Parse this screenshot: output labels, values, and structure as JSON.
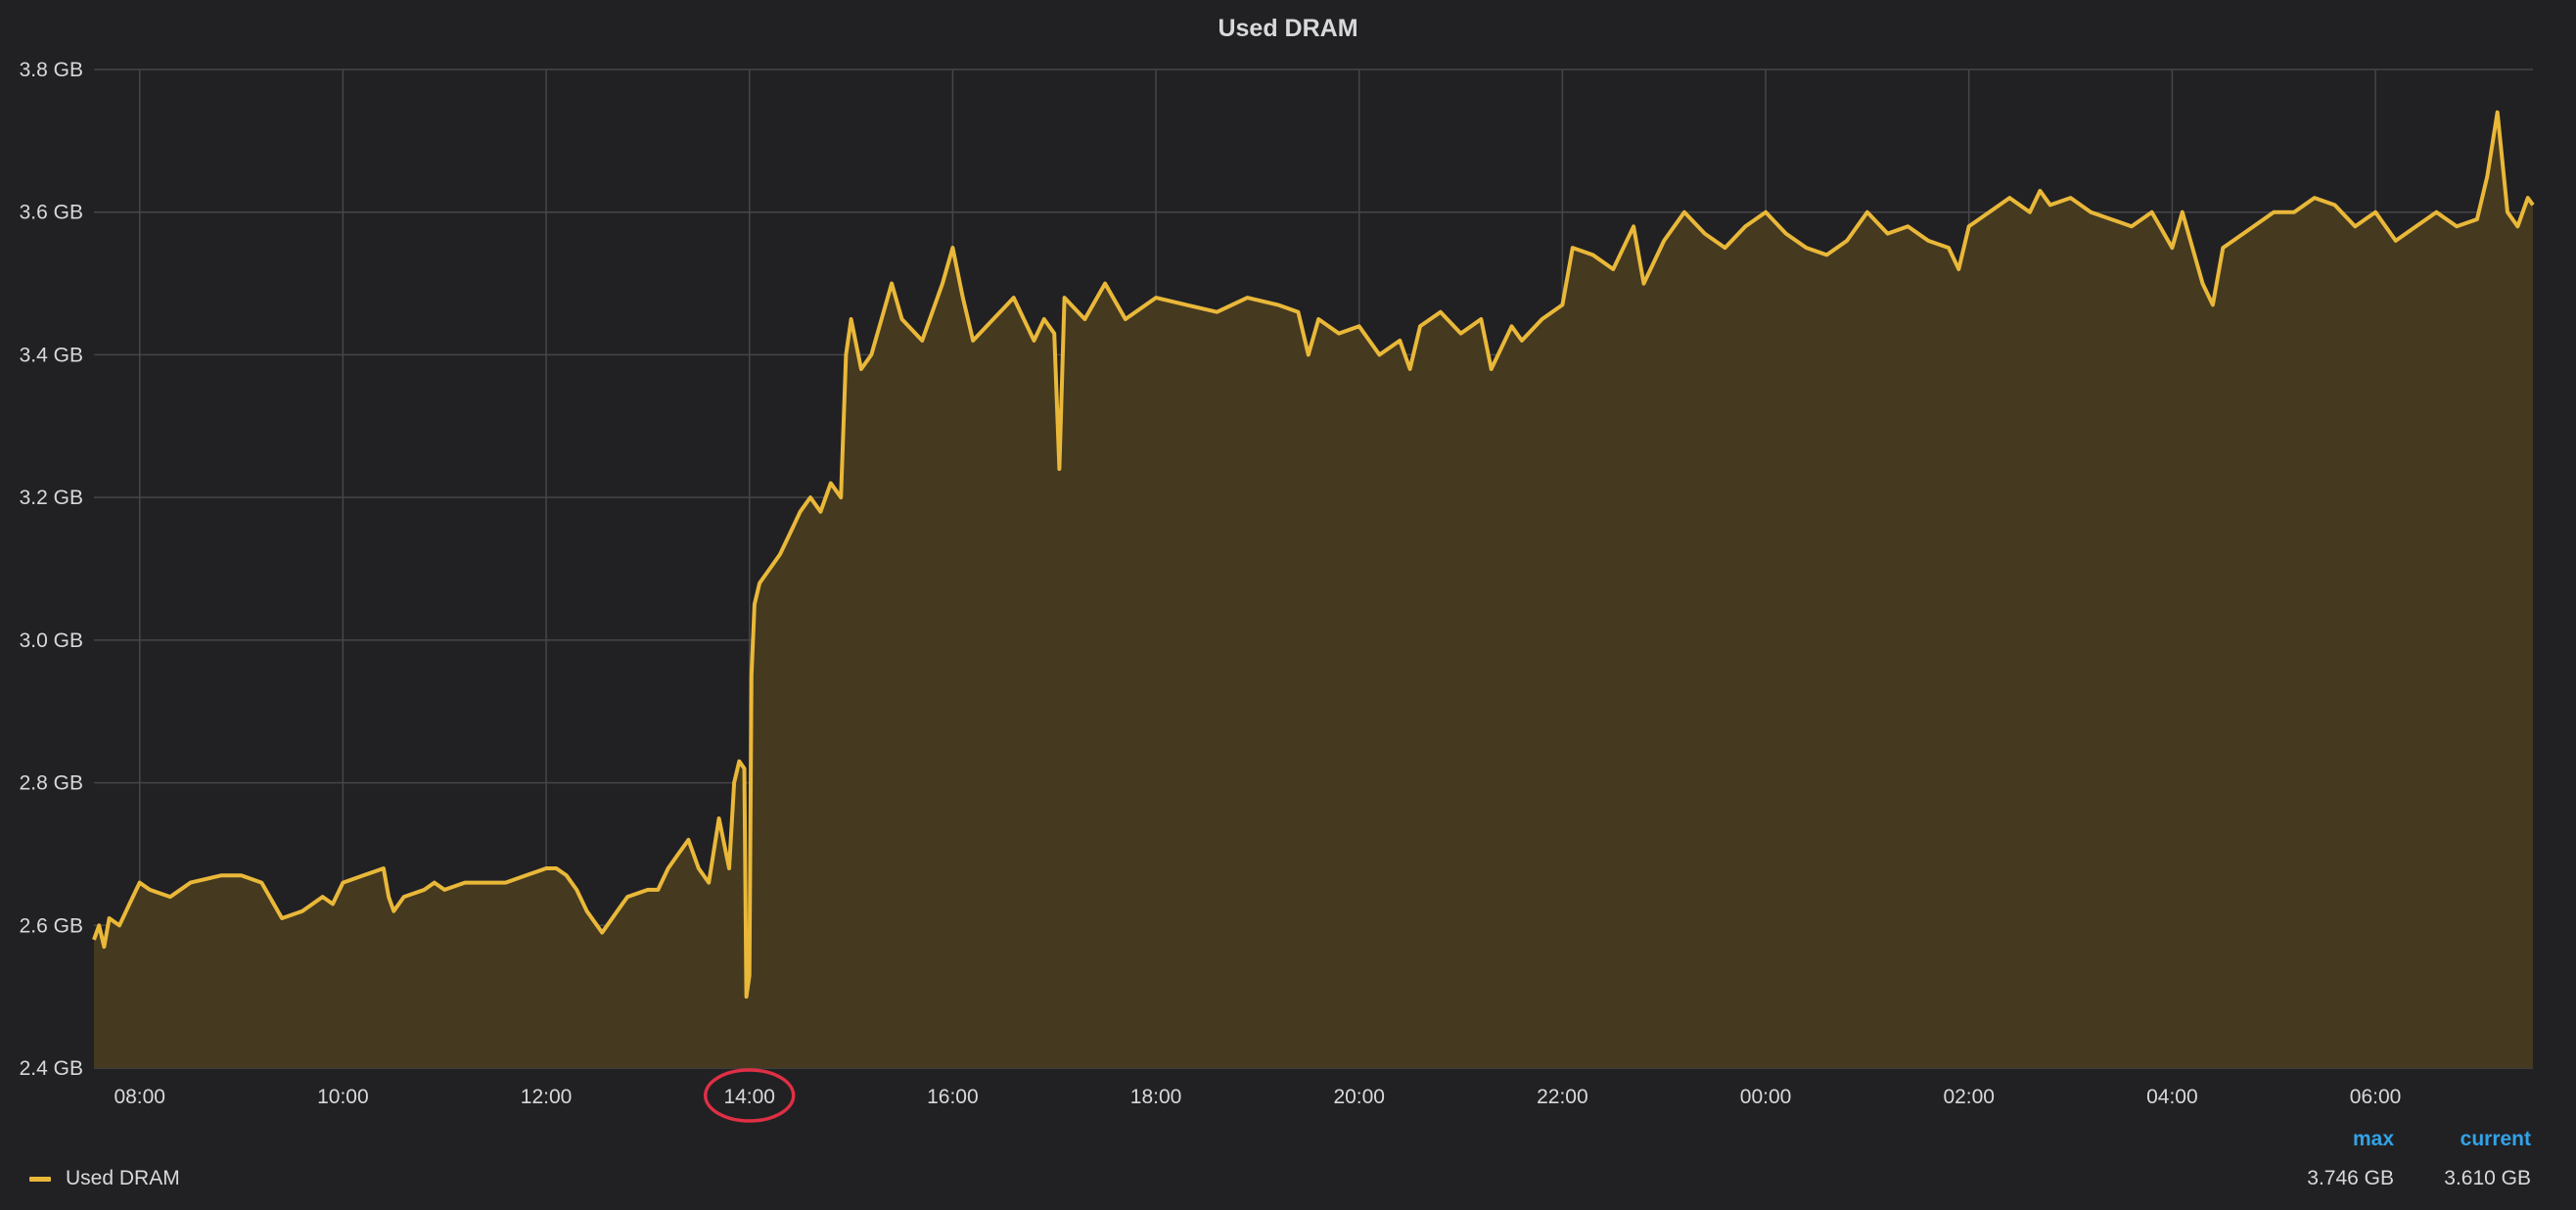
{
  "colors": {
    "background": "#212124",
    "grid": "#464649",
    "series_line": "#eab839",
    "series_fill": "#453a20",
    "legend_header": "#33a2e5",
    "text": "#d8d9da",
    "annotation_circle": "#e02f44"
  },
  "legend": {
    "header_max": "max",
    "header_current": "current",
    "series_name": "Used DRAM",
    "max_value": "3.746 GB",
    "current_value": "3.610 GB"
  },
  "annotation": {
    "shape": "circle",
    "target_tick": "14:00"
  },
  "chart_data": {
    "type": "area",
    "title": "Used DRAM",
    "xlabel": "",
    "ylabel": "",
    "grid": true,
    "legend_position": "bottom-left",
    "y_unit": "GB",
    "ylim": [
      2.4,
      3.8
    ],
    "y_ticks": [
      2.4,
      2.6,
      2.8,
      3.0,
      3.2,
      3.4,
      3.6,
      3.8
    ],
    "y_tick_labels": [
      "2.4 GB",
      "2.6 GB",
      "2.8 GB",
      "3.0 GB",
      "3.2 GB",
      "3.4 GB",
      "3.6 GB",
      "3.8 GB"
    ],
    "x_unit": "hours since 07:33 (time of day, spans midnight)",
    "xlim": [
      7.55,
      31.55
    ],
    "x_ticks": [
      8,
      10,
      12,
      14,
      16,
      18,
      20,
      22,
      24,
      26,
      28,
      30
    ],
    "x_tick_labels": [
      "08:00",
      "10:00",
      "12:00",
      "14:00",
      "16:00",
      "18:00",
      "20:00",
      "22:00",
      "00:00",
      "02:00",
      "04:00",
      "06:00"
    ],
    "series": [
      {
        "name": "Used DRAM",
        "x": [
          7.55,
          7.6,
          7.65,
          7.7,
          7.8,
          7.9,
          8.0,
          8.1,
          8.3,
          8.5,
          8.8,
          9.0,
          9.2,
          9.4,
          9.6,
          9.8,
          9.9,
          10.0,
          10.2,
          10.4,
          10.45,
          10.5,
          10.6,
          10.8,
          10.9,
          11.0,
          11.2,
          11.4,
          11.6,
          11.8,
          12.0,
          12.1,
          12.2,
          12.3,
          12.4,
          12.5,
          12.55,
          12.6,
          12.7,
          12.8,
          13.0,
          13.1,
          13.2,
          13.3,
          13.4,
          13.5,
          13.6,
          13.7,
          13.8,
          13.85,
          13.9,
          13.95,
          13.97,
          14.0,
          14.02,
          14.05,
          14.1,
          14.2,
          14.3,
          14.4,
          14.5,
          14.6,
          14.7,
          14.8,
          14.9,
          14.95,
          15.0,
          15.1,
          15.2,
          15.3,
          15.4,
          15.5,
          15.7,
          15.9,
          16.0,
          16.1,
          16.2,
          16.4,
          16.6,
          16.8,
          16.9,
          17.0,
          17.05,
          17.1,
          17.3,
          17.5,
          17.7,
          18.0,
          18.3,
          18.6,
          18.9,
          19.2,
          19.4,
          19.5,
          19.6,
          19.8,
          20.0,
          20.2,
          20.4,
          20.5,
          20.6,
          20.8,
          21.0,
          21.2,
          21.3,
          21.5,
          21.6,
          21.8,
          22.0,
          22.1,
          22.3,
          22.5,
          22.7,
          22.8,
          23.0,
          23.2,
          23.4,
          23.6,
          23.8,
          24.0,
          24.2,
          24.4,
          24.6,
          24.8,
          25.0,
          25.2,
          25.4,
          25.6,
          25.8,
          25.9,
          26.0,
          26.2,
          26.4,
          26.6,
          26.7,
          26.8,
          27.0,
          27.2,
          27.4,
          27.6,
          27.8,
          28.0,
          28.1,
          28.3,
          28.4,
          28.5,
          28.7,
          29.0,
          29.2,
          29.4,
          29.6,
          29.8,
          30.0,
          30.2,
          30.4,
          30.6,
          30.8,
          31.0,
          31.1,
          31.2,
          31.3,
          31.4,
          31.5,
          31.55
        ],
        "y": [
          2.58,
          2.6,
          2.57,
          2.61,
          2.6,
          2.63,
          2.66,
          2.65,
          2.64,
          2.66,
          2.67,
          2.67,
          2.66,
          2.61,
          2.62,
          2.64,
          2.63,
          2.66,
          2.67,
          2.68,
          2.64,
          2.62,
          2.64,
          2.65,
          2.66,
          2.65,
          2.66,
          2.66,
          2.66,
          2.67,
          2.68,
          2.68,
          2.67,
          2.65,
          2.62,
          2.6,
          2.59,
          2.6,
          2.62,
          2.64,
          2.65,
          2.65,
          2.68,
          2.7,
          2.72,
          2.68,
          2.66,
          2.75,
          2.68,
          2.8,
          2.83,
          2.82,
          2.5,
          2.53,
          2.95,
          3.05,
          3.08,
          3.1,
          3.12,
          3.15,
          3.18,
          3.2,
          3.18,
          3.22,
          3.2,
          3.4,
          3.45,
          3.38,
          3.4,
          3.45,
          3.5,
          3.45,
          3.42,
          3.5,
          3.55,
          3.48,
          3.42,
          3.45,
          3.48,
          3.42,
          3.45,
          3.43,
          3.24,
          3.48,
          3.45,
          3.5,
          3.45,
          3.48,
          3.47,
          3.46,
          3.48,
          3.47,
          3.46,
          3.4,
          3.45,
          3.43,
          3.44,
          3.4,
          3.42,
          3.38,
          3.44,
          3.46,
          3.43,
          3.45,
          3.38,
          3.44,
          3.42,
          3.45,
          3.47,
          3.55,
          3.54,
          3.52,
          3.58,
          3.5,
          3.56,
          3.6,
          3.57,
          3.55,
          3.58,
          3.6,
          3.57,
          3.55,
          3.54,
          3.56,
          3.6,
          3.57,
          3.58,
          3.56,
          3.55,
          3.52,
          3.58,
          3.6,
          3.62,
          3.6,
          3.63,
          3.61,
          3.62,
          3.6,
          3.59,
          3.58,
          3.6,
          3.55,
          3.6,
          3.5,
          3.47,
          3.55,
          3.57,
          3.6,
          3.6,
          3.62,
          3.61,
          3.58,
          3.6,
          3.56,
          3.58,
          3.6,
          3.58,
          3.59,
          3.65,
          3.74,
          3.6,
          3.58,
          3.62,
          3.61
        ]
      }
    ]
  }
}
